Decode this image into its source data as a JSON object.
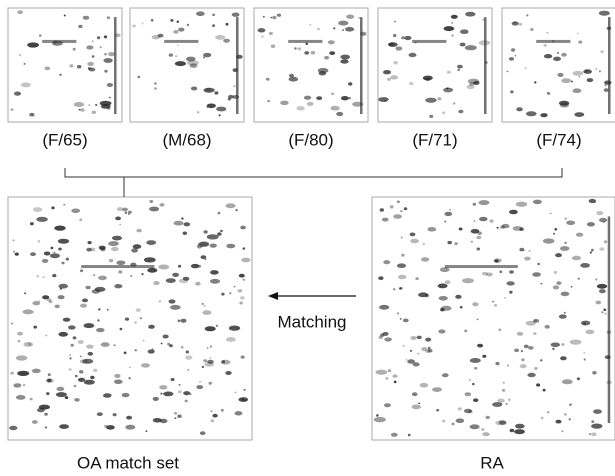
{
  "samples": [
    "(F/65)",
    "(M/68)",
    "(F/80)",
    "(F/71)",
    "(F/74)"
  ],
  "arrow_label": "Matching",
  "left_panel": {
    "label": "OA match set"
  },
  "right_panel": {
    "label": "RA"
  }
}
